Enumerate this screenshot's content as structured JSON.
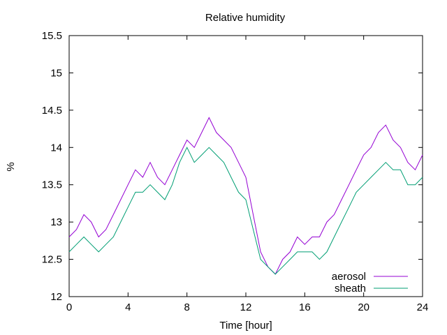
{
  "chart_data": {
    "type": "line",
    "title": "Relative humidity",
    "xlabel": "Time [hour]",
    "ylabel": "%",
    "xlim": [
      0,
      24
    ],
    "ylim": [
      12,
      15.5
    ],
    "xticks": [
      0,
      4,
      8,
      12,
      16,
      20,
      24
    ],
    "xtick_labels": [
      "0",
      "4",
      "8",
      "12",
      "16",
      "20",
      "24"
    ],
    "yticks": [
      12,
      12.5,
      13,
      13.5,
      14,
      14.5,
      15,
      15.5
    ],
    "ytick_labels": [
      "12",
      "12.5",
      "13",
      "13.5",
      "14",
      "14.5",
      "15",
      "15.5"
    ],
    "grid": false,
    "legend_position": "bottom-right",
    "colors": {
      "aerosol": "#9400d3",
      "sheath": "#009e73"
    },
    "x": [
      0,
      0.5,
      1,
      1.5,
      2,
      2.5,
      3,
      3.5,
      4,
      4.5,
      5,
      5.5,
      6,
      6.5,
      7,
      7.5,
      8,
      8.5,
      9,
      9.5,
      10,
      10.5,
      11,
      11.5,
      12,
      12.5,
      13,
      13.5,
      14,
      14.5,
      15,
      15.5,
      16,
      16.5,
      17,
      17.5,
      18,
      18.5,
      19,
      19.5,
      20,
      20.5,
      21,
      21.5,
      22,
      22.5,
      23,
      23.5,
      24
    ],
    "series": [
      {
        "name": "aerosol",
        "values": [
          12.8,
          12.9,
          13.1,
          13.0,
          12.8,
          12.9,
          13.1,
          13.3,
          13.5,
          13.7,
          13.6,
          13.8,
          13.6,
          13.5,
          13.7,
          13.9,
          14.1,
          14.0,
          14.2,
          14.4,
          14.2,
          14.1,
          14.0,
          13.8,
          13.6,
          13.1,
          12.6,
          12.4,
          12.3,
          12.5,
          12.6,
          12.8,
          12.7,
          12.8,
          12.8,
          13.0,
          13.1,
          13.3,
          13.5,
          13.7,
          13.9,
          14.0,
          14.2,
          14.3,
          14.1,
          14.0,
          13.8,
          13.7,
          13.9
        ]
      },
      {
        "name": "sheath",
        "values": [
          12.6,
          12.7,
          12.8,
          12.7,
          12.6,
          12.7,
          12.8,
          13.0,
          13.2,
          13.4,
          13.4,
          13.5,
          13.4,
          13.3,
          13.5,
          13.8,
          14.0,
          13.8,
          13.9,
          14.0,
          13.9,
          13.8,
          13.6,
          13.4,
          13.3,
          12.9,
          12.5,
          12.4,
          12.3,
          12.4,
          12.5,
          12.6,
          12.6,
          12.6,
          12.5,
          12.6,
          12.8,
          13.0,
          13.2,
          13.4,
          13.5,
          13.6,
          13.7,
          13.8,
          13.7,
          13.7,
          13.5,
          13.5,
          13.6
        ]
      }
    ]
  }
}
